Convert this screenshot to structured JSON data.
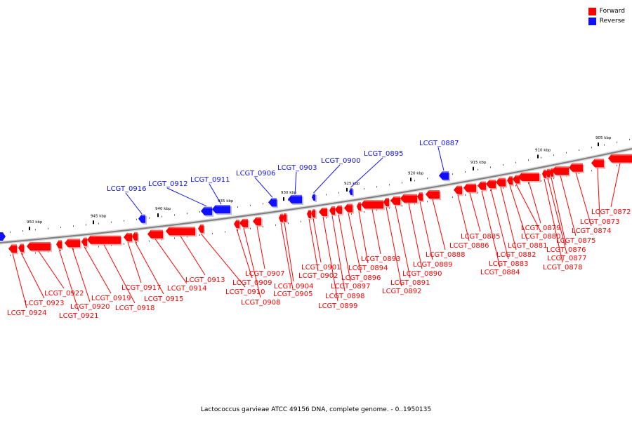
{
  "legend": {
    "forward_label": "Forward",
    "reverse_label": "Reverse",
    "forward_color": "#ff0000",
    "reverse_color": "#1010ff"
  },
  "caption": "Lactococcus garvieae ATCC 49156 DNA, complete genome. - 0..1950135",
  "ticks": [
    "950 kbp",
    "945 kbp",
    "940 kbp",
    "935 kbp",
    "930 kbp",
    "925 kbp",
    "920 kbp",
    "915 kbp",
    "910 kbp",
    "905 kbp"
  ],
  "reverse_genes": [
    "LCGT_0916",
    "LCGT_0912",
    "LCGT_0911",
    "LCGT_0906",
    "LCGT_0903",
    "LCGT_0900",
    "LCGT_0895",
    "LCGT_0887"
  ],
  "forward_genes": [
    "LCGT_0924",
    "LCGT_0923",
    "LCGT_0922",
    "LCGT_0921",
    "LCGT_0920",
    "LCGT_0919",
    "LCGT_0918",
    "LCGT_0917",
    "LCGT_0915",
    "LCGT_0914",
    "LCGT_0913",
    "LCGT_0910",
    "LCGT_0909",
    "LCGT_0908",
    "LCGT_0907",
    "LCGT_0905",
    "LCGT_0904",
    "LCGT_0902",
    "LCGT_0901",
    "LCGT_0899",
    "LCGT_0898",
    "LCGT_0897",
    "LCGT_0896",
    "LCGT_0894",
    "LCGT_0893",
    "LCGT_0892",
    "LCGT_0891",
    "LCGT_0890",
    "LCGT_0889",
    "LCGT_0888",
    "LCGT_0886",
    "LCGT_0885",
    "LCGT_0884",
    "LCGT_0883",
    "LCGT_0882",
    "LCGT_0881",
    "LCGT_0880",
    "LCGT_0879",
    "LCGT_0878",
    "LCGT_0877",
    "LCGT_0876",
    "LCGT_0875",
    "LCGT_0874",
    "LCGT_0873",
    "LCGT_0872"
  ]
}
